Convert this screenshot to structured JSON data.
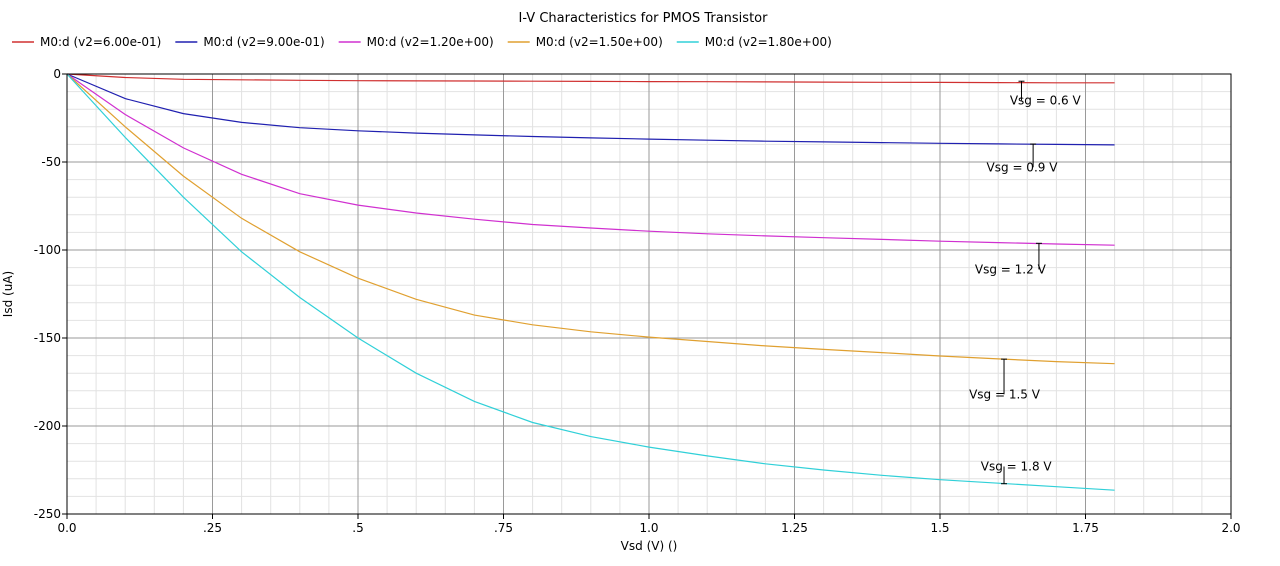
{
  "chart_data": {
    "type": "line",
    "title": "I-V Characteristics for PMOS Transistor",
    "xlabel": "Vsd (V) ()",
    "ylabel": "Isd (uA)",
    "xlim": [
      0,
      2.0
    ],
    "ylim": [
      -250,
      0
    ],
    "x_ticks": [
      {
        "v": 0,
        "label": "0.0"
      },
      {
        "v": 0.25,
        "label": ".25"
      },
      {
        "v": 0.5,
        "label": ".5"
      },
      {
        "v": 0.75,
        "label": ".75"
      },
      {
        "v": 1.0,
        "label": "1.0"
      },
      {
        "v": 1.25,
        "label": "1.25"
      },
      {
        "v": 1.5,
        "label": "1.5"
      },
      {
        "v": 1.75,
        "label": "1.75"
      },
      {
        "v": 2.0,
        "label": "2.0"
      }
    ],
    "y_ticks": [
      {
        "v": 0,
        "label": "0"
      },
      {
        "v": -50,
        "label": "-50"
      },
      {
        "v": -100,
        "label": "-100"
      },
      {
        "v": -150,
        "label": "-150"
      },
      {
        "v": -200,
        "label": "-200"
      },
      {
        "v": -250,
        "label": "-250"
      }
    ],
    "grid": true,
    "legend_position": "top",
    "x": [
      0,
      0.1,
      0.2,
      0.3,
      0.4,
      0.5,
      0.6,
      0.7,
      0.8,
      0.9,
      1.0,
      1.1,
      1.2,
      1.3,
      1.4,
      1.5,
      1.6,
      1.7,
      1.8
    ],
    "series": [
      {
        "name": "M0:d (v2=6.00e-01)",
        "color": "#d03030",
        "values": [
          0,
          -2.0,
          -3.0,
          -3.3,
          -3.6,
          -3.8,
          -3.9,
          -4.0,
          -4.1,
          -4.2,
          -4.3,
          -4.4,
          -4.5,
          -4.6,
          -4.7,
          -4.8,
          -4.9,
          -5.0,
          -5.0
        ]
      },
      {
        "name": "M0:d (v2=9.00e-01)",
        "color": "#2020b0",
        "values": [
          0,
          -14,
          -22.5,
          -27.5,
          -30.5,
          -32.3,
          -33.6,
          -34.6,
          -35.5,
          -36.3,
          -37.0,
          -37.6,
          -38.2,
          -38.6,
          -39.0,
          -39.4,
          -39.7,
          -40.0,
          -40.3
        ]
      },
      {
        "name": "M0:d (v2=1.20e+00)",
        "color": "#d030d0",
        "values": [
          0,
          -23,
          -42,
          -57,
          -68,
          -74.5,
          -79,
          -82.5,
          -85.5,
          -87.5,
          -89.3,
          -90.8,
          -92.0,
          -93.0,
          -94.0,
          -95.0,
          -95.8,
          -96.6,
          -97.3
        ]
      },
      {
        "name": "M0:d (v2=1.50e+00)",
        "color": "#e0a030",
        "values": [
          0,
          -30,
          -58,
          -82,
          -101,
          -116,
          -128,
          -137,
          -142.5,
          -146.5,
          -149.5,
          -152,
          -154.5,
          -156.5,
          -158.3,
          -160.2,
          -161.9,
          -163.4,
          -164.6
        ]
      },
      {
        "name": "M0:d (v2=1.80e+00)",
        "color": "#30d0d8",
        "values": [
          0,
          -36,
          -70,
          -101,
          -127,
          -150,
          -170,
          -186,
          -198,
          -206,
          -212,
          -217,
          -221.5,
          -225,
          -228,
          -230.5,
          -232.5,
          -234.5,
          -236.5
        ]
      }
    ],
    "annotations": [
      {
        "text": "Vsg = 0.6 V",
        "x": 1.64,
        "y": -4.1,
        "label_x": 1.62,
        "label_y": -15
      },
      {
        "text": "Vsg = 0.9 V",
        "x": 1.66,
        "y": -39.8,
        "label_x": 1.58,
        "label_y": -53
      },
      {
        "text": "Vsg = 1.2 V",
        "x": 1.67,
        "y": -96.2,
        "label_x": 1.56,
        "label_y": -111
      },
      {
        "text": "Vsg = 1.5 V",
        "x": 1.61,
        "y": -162,
        "label_x": 1.55,
        "label_y": -182
      },
      {
        "text": "Vsg = 1.8 V",
        "x": 1.61,
        "y": -232.8,
        "label_x": 1.57,
        "label_y": -223
      }
    ]
  }
}
